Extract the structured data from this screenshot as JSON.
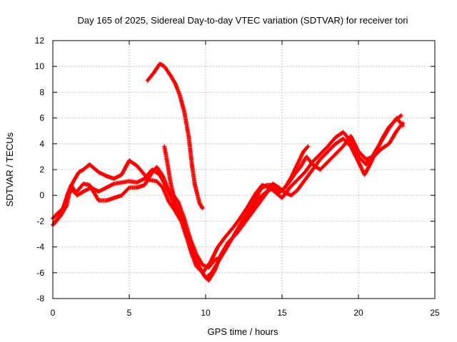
{
  "chart_data": {
    "type": "scatter",
    "title": "Day 165 of 2025, Sidereal Day-to-day VTEC variation (SDTVAR) for receiver tori",
    "xlabel": "GPS time / hours",
    "ylabel": "SDTVAR / TECUs",
    "xlim": [
      0,
      25
    ],
    "ylim": [
      -8,
      12
    ],
    "xticks": [
      "0",
      "5",
      "10",
      "15",
      "20",
      "25"
    ],
    "yticks": [
      "-8",
      "-6",
      "-4",
      "-2",
      "0",
      "2",
      "4",
      "6",
      "8",
      "10",
      "12"
    ],
    "grid": true,
    "marker": "plus",
    "series_color": "#ff0000",
    "series": [
      {
        "traces": [
          [
            [
              0.0,
              -2.3
            ],
            [
              0.3,
              -1.9
            ],
            [
              0.6,
              -1.2
            ],
            [
              0.9,
              -0.2
            ],
            [
              1.1,
              0.5
            ],
            [
              1.4,
              1.2
            ],
            [
              1.7,
              1.8
            ],
            [
              2.0,
              2.0
            ],
            [
              2.4,
              2.4
            ],
            [
              2.6,
              2.2
            ],
            [
              3.0,
              1.8
            ],
            [
              3.5,
              1.5
            ],
            [
              4.0,
              1.3
            ],
            [
              4.5,
              1.6
            ],
            [
              5.0,
              2.7
            ],
            [
              5.5,
              2.3
            ],
            [
              6.0,
              1.6
            ],
            [
              6.3,
              1.2
            ],
            [
              6.8,
              1.1
            ],
            [
              7.2,
              0.6
            ],
            [
              7.6,
              -0.5
            ],
            [
              8.0,
              -1.2
            ],
            [
              8.4,
              -2.0
            ],
            [
              8.8,
              -3.4
            ],
            [
              9.1,
              -4.6
            ],
            [
              9.4,
              -5.5
            ],
            [
              9.8,
              -6.0
            ],
            [
              10.3,
              -5.2
            ],
            [
              10.8,
              -4.0
            ],
            [
              11.3,
              -3.2
            ],
            [
              11.8,
              -2.5
            ],
            [
              12.3,
              -1.7
            ],
            [
              12.8,
              -0.8
            ],
            [
              13.3,
              0.2
            ],
            [
              13.7,
              0.8
            ],
            [
              14.2,
              0.6
            ],
            [
              14.6,
              0.2
            ],
            [
              15.0,
              -0.2
            ],
            [
              15.5,
              0.6
            ],
            [
              16.0,
              1.2
            ],
            [
              16.5,
              1.8
            ],
            [
              17.0,
              2.6
            ],
            [
              17.5,
              3.2
            ],
            [
              18.0,
              3.8
            ],
            [
              18.5,
              4.5
            ],
            [
              19.0,
              4.9
            ],
            [
              19.5,
              4.2
            ],
            [
              20.0,
              3.0
            ],
            [
              20.5,
              2.4
            ],
            [
              21.0,
              3.2
            ],
            [
              21.5,
              4.2
            ],
            [
              22.0,
              5.2
            ],
            [
              22.5,
              6.0
            ],
            [
              22.9,
              5.4
            ]
          ],
          [
            [
              0.0,
              -1.8
            ],
            [
              0.3,
              -1.4
            ],
            [
              0.7,
              -1.0
            ],
            [
              1.0,
              0.2
            ],
            [
              1.3,
              0.4
            ],
            [
              1.6,
              0.0
            ],
            [
              2.0,
              0.3
            ],
            [
              2.5,
              0.6
            ],
            [
              3.0,
              0.3
            ],
            [
              3.5,
              0.6
            ],
            [
              4.0,
              0.9
            ],
            [
              4.5,
              1.0
            ],
            [
              5.0,
              1.1
            ],
            [
              5.5,
              1.0
            ],
            [
              6.0,
              1.3
            ],
            [
              6.5,
              2.0
            ],
            [
              7.0,
              1.6
            ],
            [
              7.4,
              0.7
            ],
            [
              7.8,
              -0.2
            ],
            [
              8.2,
              -1.2
            ],
            [
              8.6,
              -2.4
            ],
            [
              9.0,
              -3.8
            ],
            [
              9.3,
              -5.0
            ],
            [
              9.7,
              -5.8
            ],
            [
              10.0,
              -6.4
            ],
            [
              10.4,
              -6.0
            ],
            [
              10.9,
              -5.0
            ],
            [
              11.4,
              -4.0
            ],
            [
              11.9,
              -3.0
            ],
            [
              12.4,
              -2.0
            ],
            [
              13.0,
              -1.0
            ],
            [
              13.5,
              -0.2
            ],
            [
              14.0,
              0.3
            ],
            [
              14.4,
              0.9
            ],
            [
              14.8,
              0.6
            ],
            [
              15.2,
              0.2
            ],
            [
              15.6,
              0.0
            ],
            [
              16.0,
              0.4
            ],
            [
              16.5,
              1.2
            ],
            [
              17.0,
              2.0
            ],
            [
              17.5,
              2.8
            ],
            [
              18.0,
              3.4
            ],
            [
              18.5,
              4.0
            ],
            [
              19.0,
              4.4
            ],
            [
              19.5,
              3.8
            ],
            [
              20.0,
              2.6
            ],
            [
              20.4,
              1.6
            ],
            [
              20.8,
              2.5
            ],
            [
              21.2,
              3.5
            ],
            [
              21.6,
              4.5
            ],
            [
              22.0,
              5.3
            ],
            [
              22.4,
              5.8
            ],
            [
              22.8,
              6.2
            ]
          ],
          [
            [
              0.1,
              -2.1
            ],
            [
              0.5,
              -1.6
            ],
            [
              0.9,
              -0.8
            ],
            [
              1.2,
              0.8
            ],
            [
              1.5,
              0.2
            ],
            [
              2.0,
              0.9
            ],
            [
              2.4,
              0.8
            ],
            [
              3.0,
              -0.4
            ],
            [
              3.5,
              -0.4
            ],
            [
              4.0,
              -0.2
            ],
            [
              4.5,
              0.0
            ],
            [
              5.0,
              0.6
            ],
            [
              5.5,
              0.6
            ],
            [
              6.0,
              0.8
            ],
            [
              6.4,
              1.6
            ],
            [
              6.8,
              2.2
            ],
            [
              7.2,
              1.5
            ],
            [
              7.6,
              0.3
            ],
            [
              8.0,
              -0.8
            ],
            [
              8.4,
              -1.8
            ],
            [
              8.8,
              -2.8
            ],
            [
              9.2,
              -4.2
            ],
            [
              9.5,
              -5.4
            ],
            [
              9.9,
              -6.2
            ],
            [
              10.2,
              -6.6
            ],
            [
              10.6,
              -5.8
            ],
            [
              11.0,
              -4.6
            ],
            [
              11.5,
              -3.6
            ],
            [
              12.0,
              -3.0
            ],
            [
              12.5,
              -2.2
            ],
            [
              13.0,
              -1.4
            ],
            [
              13.5,
              -0.6
            ],
            [
              14.0,
              0.2
            ],
            [
              14.5,
              0.8
            ],
            [
              15.0,
              0.4
            ],
            [
              15.4,
              0.9
            ],
            [
              15.8,
              1.6
            ],
            [
              16.2,
              2.2
            ],
            [
              16.6,
              3.0
            ],
            [
              17.0,
              2.4
            ],
            [
              17.5,
              2.0
            ],
            [
              18.0,
              2.6
            ],
            [
              18.5,
              3.2
            ],
            [
              19.0,
              3.8
            ],
            [
              19.5,
              4.6
            ],
            [
              20.0,
              3.4
            ],
            [
              20.5,
              2.8
            ],
            [
              21.0,
              3.0
            ],
            [
              21.5,
              3.6
            ],
            [
              22.0,
              4.0
            ],
            [
              22.5,
              5.0
            ],
            [
              22.9,
              5.6
            ]
          ],
          [
            [
              6.2,
              8.9
            ],
            [
              6.6,
              9.5
            ],
            [
              7.0,
              10.2
            ],
            [
              7.3,
              10.0
            ],
            [
              7.7,
              9.3
            ],
            [
              8.0,
              8.7
            ],
            [
              8.3,
              7.8
            ],
            [
              8.6,
              6.5
            ],
            [
              8.9,
              4.5
            ],
            [
              9.1,
              2.4
            ],
            [
              9.3,
              0.8
            ],
            [
              9.6,
              -0.6
            ],
            [
              9.8,
              -1.0
            ]
          ],
          [
            [
              7.3,
              3.8
            ],
            [
              7.5,
              2.5
            ],
            [
              7.7,
              1.0
            ],
            [
              7.9,
              0.0
            ],
            [
              8.2,
              -0.5
            ],
            [
              8.6,
              -1.8
            ],
            [
              9.0,
              -3.4
            ],
            [
              9.4,
              -4.6
            ],
            [
              9.8,
              -5.4
            ],
            [
              10.2,
              -5.6
            ],
            [
              10.6,
              -5.0
            ],
            [
              11.0,
              -4.8
            ]
          ],
          [
            [
              12.4,
              -2.4
            ],
            [
              12.6,
              -1.9
            ],
            [
              12.8,
              -1.2
            ],
            [
              13.0,
              -0.6
            ],
            [
              13.3,
              -0.2
            ],
            [
              13.6,
              0.5
            ],
            [
              14.0,
              0.8
            ],
            [
              14.4,
              0.8
            ],
            [
              14.8,
              0.2
            ],
            [
              15.2,
              0.6
            ],
            [
              15.6,
              1.4
            ],
            [
              16.0,
              2.4
            ],
            [
              16.4,
              3.4
            ],
            [
              16.7,
              3.8
            ]
          ]
        ]
      }
    ]
  }
}
